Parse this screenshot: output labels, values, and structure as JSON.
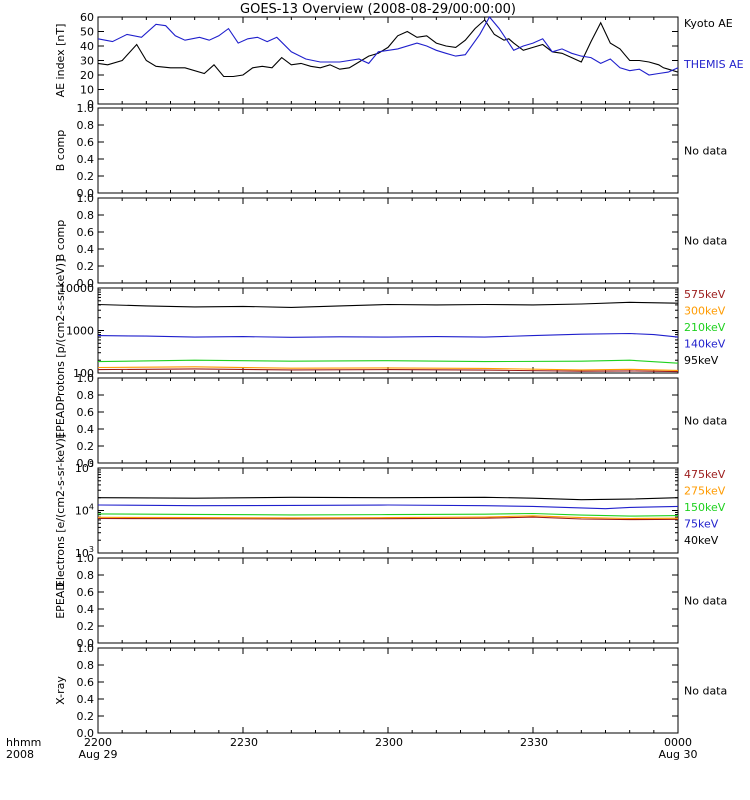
{
  "title": "GOES-13 Overview (2008-08-29/00:00:00)",
  "x_axis": {
    "ticks": [
      "2200",
      "2230",
      "2300",
      "2330",
      "0000"
    ],
    "dates": [
      "Aug 29",
      "Aug 30"
    ],
    "label_top": "hhmm",
    "label_bottom": "2008"
  },
  "colors": {
    "black": "#000000",
    "blue": "#1f1fcc",
    "green": "#1fd11f",
    "orange": "#ff9b00",
    "darkred": "#9b1b1b"
  },
  "chart_data": [
    {
      "type": "line",
      "panel": "ae-index",
      "ylabel": "AE index [nT]",
      "ylim": [
        0,
        60
      ],
      "yticks": [
        "0",
        "10",
        "20",
        "30",
        "40",
        "50",
        "60"
      ],
      "x_range": [
        "22:00",
        "24:00"
      ],
      "series": [
        {
          "name": "Kyoto AE",
          "color": "#000000",
          "x": [
            0,
            2,
            5,
            8,
            10,
            12,
            15,
            18,
            22,
            24,
            26,
            28,
            30,
            32,
            34,
            36,
            38,
            40,
            42,
            44,
            46,
            48,
            50,
            52,
            54,
            56,
            58,
            60,
            62,
            64,
            66,
            68,
            70,
            72,
            74,
            76,
            78,
            80,
            82,
            84,
            85,
            86,
            88,
            90,
            92,
            94,
            96,
            98,
            100,
            102,
            104,
            106,
            108,
            109,
            110,
            112,
            114,
            116,
            117,
            118,
            120
          ],
          "values": [
            28,
            27,
            30,
            41,
            30,
            26,
            25,
            25,
            21,
            27,
            19,
            19,
            20,
            25,
            26,
            25,
            32,
            27,
            28,
            26,
            25,
            27,
            24,
            25,
            29,
            33,
            35,
            39,
            47,
            50,
            46,
            47,
            42,
            40,
            39,
            44,
            52,
            58,
            48,
            44,
            45,
            42,
            37,
            39,
            41,
            36,
            35,
            32,
            29,
            43,
            56,
            42,
            38,
            34,
            30,
            30,
            29,
            27,
            25,
            24,
            22
          ]
        },
        {
          "name": "THEMIS AE",
          "color": "#1f1fcc",
          "x": [
            0,
            3,
            6,
            9,
            12,
            14,
            16,
            18,
            21,
            23,
            25,
            27,
            29,
            31,
            33,
            35,
            37,
            40,
            43,
            46,
            50,
            54,
            56,
            58,
            62,
            66,
            68,
            70,
            72,
            74,
            76,
            79,
            81,
            83,
            86,
            88,
            90,
            92,
            94,
            96,
            98,
            100,
            102,
            104,
            106,
            108,
            110,
            112,
            114,
            116,
            118,
            120
          ],
          "values": [
            45,
            43,
            48,
            46,
            55,
            54,
            47,
            44,
            46,
            44,
            47,
            52,
            42,
            45,
            46,
            43,
            46,
            36,
            31,
            29,
            29,
            31,
            28,
            36,
            38,
            42,
            40,
            37,
            35,
            33,
            34,
            48,
            60,
            52,
            37,
            40,
            42,
            45,
            36,
            38,
            35,
            33,
            32,
            28,
            31,
            25,
            23,
            24,
            20,
            21,
            22,
            25
          ]
        }
      ]
    },
    {
      "type": "line",
      "panel": "b-comp-1",
      "ylabel": "B comp",
      "ylim": [
        0,
        1
      ],
      "yticks": [
        "0.0",
        "0.2",
        "0.4",
        "0.6",
        "0.8",
        "1.0"
      ],
      "message": "No data",
      "series": []
    },
    {
      "type": "line",
      "panel": "b-comp-2",
      "ylabel": "B comp",
      "ylim": [
        0,
        1
      ],
      "yticks": [
        "0.0",
        "0.2",
        "0.4",
        "0.6",
        "0.8",
        "1.0"
      ],
      "message": "No data",
      "series": []
    },
    {
      "type": "line",
      "panel": "protons",
      "ylabel": "Protons [p/(cm2-s-sr-keV)]",
      "ylim": [
        100,
        10000
      ],
      "scale": "log",
      "yticks": [
        "100",
        "1000",
        "10000"
      ],
      "x_range": [
        "22:00",
        "24:00"
      ],
      "series": [
        {
          "name": "575keV",
          "color": "#9b1b1b",
          "x": [
            0,
            20,
            40,
            60,
            80,
            100,
            110,
            120
          ],
          "values": [
            120,
            125,
            118,
            120,
            117,
            110,
            112,
            108
          ]
        },
        {
          "name": "300keV",
          "color": "#ff9b00",
          "x": [
            0,
            20,
            40,
            60,
            80,
            100,
            110,
            120
          ],
          "values": [
            135,
            140,
            130,
            132,
            128,
            118,
            122,
            115
          ]
        },
        {
          "name": "210keV",
          "color": "#1fd11f",
          "x": [
            0,
            20,
            40,
            60,
            80,
            100,
            110,
            120
          ],
          "values": [
            185,
            200,
            190,
            195,
            185,
            190,
            200,
            170
          ]
        },
        {
          "name": "140keV",
          "color": "#1f1fcc",
          "x": [
            0,
            10,
            20,
            30,
            40,
            50,
            60,
            70,
            80,
            90,
            100,
            110,
            115,
            120
          ],
          "values": [
            760,
            740,
            700,
            720,
            690,
            710,
            700,
            720,
            700,
            760,
            820,
            850,
            800,
            700
          ]
        },
        {
          "name": "95keV",
          "color": "#000000",
          "x": [
            0,
            10,
            20,
            30,
            40,
            50,
            60,
            70,
            80,
            90,
            100,
            110,
            120
          ],
          "values": [
            4100,
            3800,
            3600,
            3700,
            3500,
            3800,
            4100,
            4000,
            4100,
            4000,
            4200,
            4600,
            4400
          ]
        }
      ]
    },
    {
      "type": "line",
      "panel": "epead-1",
      "ylabel": "EPEAD",
      "ylim": [
        0,
        1
      ],
      "yticks": [
        "0.0",
        "0.2",
        "0.4",
        "0.6",
        "0.8",
        "1.0"
      ],
      "message": "No data",
      "series": []
    },
    {
      "type": "line",
      "panel": "electrons",
      "ylabel": "Electrons [e/(cm2-s-sr-keV)]",
      "ylim": [
        1000,
        100000
      ],
      "scale": "log",
      "yticks": [
        "10^3",
        "10^4",
        "10^5"
      ],
      "x_range": [
        "22:00",
        "24:00"
      ],
      "series": [
        {
          "name": "475keV",
          "color": "#9b1b1b",
          "x": [
            0,
            20,
            40,
            60,
            80,
            90,
            100,
            110,
            120
          ],
          "values": [
            6500,
            6400,
            6300,
            6400,
            6600,
            7000,
            6300,
            6100,
            6200
          ]
        },
        {
          "name": "275keV",
          "color": "#ff9b00",
          "x": [
            0,
            20,
            40,
            60,
            80,
            90,
            100,
            110,
            120
          ],
          "values": [
            6900,
            6800,
            6700,
            6800,
            7000,
            7500,
            6800,
            6500,
            6600
          ]
        },
        {
          "name": "150keV",
          "color": "#1fd11f",
          "x": [
            0,
            20,
            40,
            60,
            80,
            90,
            100,
            110,
            120
          ],
          "values": [
            8300,
            8100,
            7900,
            8000,
            8200,
            8500,
            7800,
            7400,
            7600
          ]
        },
        {
          "name": "75keV",
          "color": "#1f1fcc",
          "x": [
            0,
            20,
            40,
            60,
            80,
            90,
            100,
            105,
            110,
            120
          ],
          "values": [
            13500,
            13000,
            13200,
            13500,
            13000,
            12500,
            11500,
            11000,
            11800,
            12500
          ]
        },
        {
          "name": "40keV",
          "color": "#000000",
          "x": [
            0,
            20,
            40,
            60,
            80,
            90,
            100,
            110,
            120
          ],
          "values": [
            20000,
            19500,
            20500,
            20000,
            20500,
            19500,
            18000,
            18500,
            20000
          ]
        }
      ]
    },
    {
      "type": "line",
      "panel": "epead-2",
      "ylabel": "EPEAD",
      "ylim": [
        0,
        1
      ],
      "yticks": [
        "0.0",
        "0.2",
        "0.4",
        "0.6",
        "0.8",
        "1.0"
      ],
      "message": "No data",
      "series": []
    },
    {
      "type": "line",
      "panel": "x-ray",
      "ylabel": "X-ray",
      "ylim": [
        0,
        1
      ],
      "yticks": [
        "0.0",
        "0.2",
        "0.4",
        "0.6",
        "0.8",
        "1.0"
      ],
      "message": "No data",
      "series": []
    }
  ]
}
